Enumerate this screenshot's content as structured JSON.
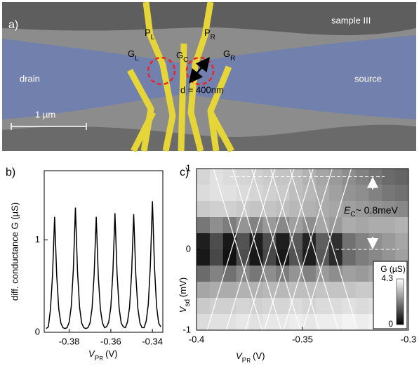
{
  "panel_a": {
    "label": "a)",
    "sample": "sample III",
    "drain": "drain",
    "source": "source",
    "gates": [
      {
        "main": "P",
        "sub": "L"
      },
      {
        "main": "P",
        "sub": "R"
      },
      {
        "main": "G",
        "sub": "L"
      },
      {
        "main": "G",
        "sub": "C"
      },
      {
        "main": "G",
        "sub": "R"
      }
    ],
    "distance": "d = 400nm",
    "scale_bar": "1 µm"
  },
  "chart_data": [
    {
      "type": "line",
      "label": "b)",
      "ylabel": "diff. conductance G (µS)",
      "xlabel": {
        "symbol": "V",
        "sub": "P",
        "subsub": "R",
        "unit": "(V)"
      },
      "x": [
        -0.391,
        -0.39,
        -0.389,
        -0.388,
        -0.387,
        -0.386,
        -0.385,
        -0.384,
        -0.383,
        -0.382,
        -0.381,
        -0.38,
        -0.379,
        -0.378,
        -0.377,
        -0.376,
        -0.375,
        -0.374,
        -0.373,
        -0.372,
        -0.371,
        -0.37,
        -0.369,
        -0.368,
        -0.367,
        -0.366,
        -0.365,
        -0.364,
        -0.363,
        -0.362,
        -0.361,
        -0.36,
        -0.359,
        -0.358,
        -0.357,
        -0.356,
        -0.355,
        -0.354,
        -0.353,
        -0.352,
        -0.351,
        -0.35,
        -0.349,
        -0.348,
        -0.347,
        -0.346,
        -0.345,
        -0.344,
        -0.343,
        -0.342,
        -0.341,
        -0.34,
        -0.339,
        -0.338,
        -0.337,
        -0.336
      ],
      "values": [
        0.04,
        0.06,
        0.25,
        0.62,
        1.25,
        0.62,
        0.25,
        0.1,
        0.05,
        0.04,
        0.05,
        0.11,
        0.28,
        0.68,
        1.35,
        0.66,
        0.27,
        0.1,
        0.05,
        0.04,
        0.05,
        0.1,
        0.26,
        0.63,
        1.25,
        0.6,
        0.25,
        0.1,
        0.05,
        0.06,
        0.11,
        0.27,
        0.65,
        1.29,
        0.64,
        0.26,
        0.1,
        0.06,
        0.05,
        0.11,
        0.27,
        0.64,
        1.28,
        0.63,
        0.26,
        0.1,
        0.05,
        0.05,
        0.12,
        0.3,
        0.72,
        1.42,
        0.7,
        0.28,
        0.1,
        0.06
      ],
      "color": "#000000",
      "xlim": [
        -0.392,
        -0.335
      ],
      "ylim": [
        0,
        1.75
      ],
      "xticks": [
        -0.38,
        -0.36,
        -0.34
      ],
      "yticks": [
        0,
        1
      ]
    },
    {
      "type": "heatmap",
      "label": "c)",
      "xlabel": {
        "symbol": "V",
        "sub": "P",
        "subsub": "R",
        "unit": "(V)"
      },
      "ylabel": {
        "symbol": "V",
        "sub": "sd",
        "unit": "(mV)"
      },
      "x": [
        -0.396875,
        -0.390625,
        -0.384375,
        -0.378125,
        -0.371875,
        -0.365625,
        -0.359375,
        -0.353125,
        -0.346875,
        -0.340625,
        -0.334375,
        -0.328125,
        -0.321875,
        -0.315625,
        -0.309375,
        -0.303125
      ],
      "y": [
        0.9,
        0.7,
        0.5,
        0.3,
        0.1,
        -0.1,
        -0.3,
        -0.5,
        -0.7,
        -0.9
      ],
      "z": [
        [
          3.6,
          3.8,
          3.7,
          3.6,
          3.5,
          3.4,
          3.3,
          3.2,
          3.0,
          2.8,
          2.6,
          2.4,
          2.2,
          2.0,
          1.8,
          1.7
        ],
        [
          3.7,
          3.8,
          3.8,
          3.7,
          3.6,
          3.5,
          3.4,
          3.2,
          3.1,
          2.9,
          2.7,
          2.5,
          2.4,
          2.2,
          2.0,
          1.9
        ],
        [
          3.4,
          3.5,
          3.5,
          3.4,
          3.3,
          3.3,
          3.2,
          3.1,
          3.0,
          2.9,
          2.8,
          2.7,
          2.6,
          2.5,
          2.4,
          2.3
        ],
        [
          2.0,
          2.4,
          2.1,
          2.5,
          2.2,
          2.6,
          2.3,
          2.7,
          2.4,
          2.8,
          2.6,
          2.9,
          2.8,
          2.9,
          2.9,
          3.0
        ],
        [
          0.5,
          1.3,
          0.4,
          1.4,
          0.5,
          1.3,
          0.5,
          1.5,
          0.6,
          1.6,
          0.8,
          1.9,
          2.2,
          2.4,
          2.6,
          2.8
        ],
        [
          0.4,
          1.2,
          0.3,
          1.3,
          0.4,
          1.2,
          0.4,
          1.4,
          0.5,
          1.5,
          0.7,
          1.8,
          2.1,
          2.3,
          2.5,
          2.7
        ],
        [
          1.8,
          2.2,
          1.9,
          2.3,
          2.0,
          2.4,
          2.1,
          2.5,
          2.2,
          2.6,
          2.4,
          2.7,
          2.6,
          2.8,
          2.9,
          3.0
        ],
        [
          2.8,
          2.9,
          2.9,
          3.0,
          3.0,
          3.1,
          3.1,
          3.2,
          3.2,
          3.3,
          3.3,
          3.3,
          3.4,
          3.4,
          3.4,
          3.5
        ],
        [
          3.4,
          3.5,
          3.5,
          3.6,
          3.5,
          3.6,
          3.6,
          3.7,
          3.6,
          3.7,
          3.7,
          3.8,
          3.7,
          3.8,
          3.8,
          3.8
        ],
        [
          3.7,
          3.8,
          3.8,
          3.9,
          3.8,
          3.9,
          3.9,
          4.0,
          3.9,
          4.0,
          4.0,
          4.1,
          4.0,
          4.1,
          4.1,
          4.1
        ]
      ],
      "xlim": [
        -0.4,
        -0.3
      ],
      "ylim": [
        -1,
        1
      ],
      "xticks": [
        -0.4,
        -0.35,
        -0.3
      ],
      "yticks": [
        -1,
        0,
        1
      ],
      "colorbar": {
        "label": "G (µS)",
        "range": [
          0,
          4.3
        ],
        "ticks": [
          4.3,
          0
        ]
      },
      "lines": [
        {
          "x": [
            -0.395,
            -0.372
          ],
          "y": [
            -1,
            1
          ]
        },
        {
          "x": [
            -0.386,
            -0.363
          ],
          "y": [
            -1,
            1
          ]
        },
        {
          "x": [
            -0.377,
            -0.354
          ],
          "y": [
            -1,
            1
          ]
        },
        {
          "x": [
            -0.368,
            -0.345
          ],
          "y": [
            -1,
            1
          ]
        },
        {
          "x": [
            -0.359,
            -0.336
          ],
          "y": [
            -1,
            1
          ]
        },
        {
          "x": [
            -0.35,
            -0.327
          ],
          "y": [
            -1,
            1
          ]
        },
        {
          "x": [
            -0.369,
            -0.392
          ],
          "y": [
            -1,
            1
          ]
        },
        {
          "x": [
            -0.36,
            -0.383
          ],
          "y": [
            -1,
            1
          ]
        },
        {
          "x": [
            -0.351,
            -0.374
          ],
          "y": [
            -1,
            1
          ]
        },
        {
          "x": [
            -0.342,
            -0.365
          ],
          "y": [
            -1,
            1
          ]
        },
        {
          "x": [
            -0.333,
            -0.356
          ],
          "y": [
            -1,
            1
          ]
        },
        {
          "x": [
            -0.324,
            -0.347
          ],
          "y": [
            -1,
            1
          ]
        }
      ],
      "annotation": {
        "symbol": "E",
        "sub": "C",
        "text": "~ 0.8meV",
        "levels": [
          0.9,
          0
        ]
      }
    }
  ]
}
